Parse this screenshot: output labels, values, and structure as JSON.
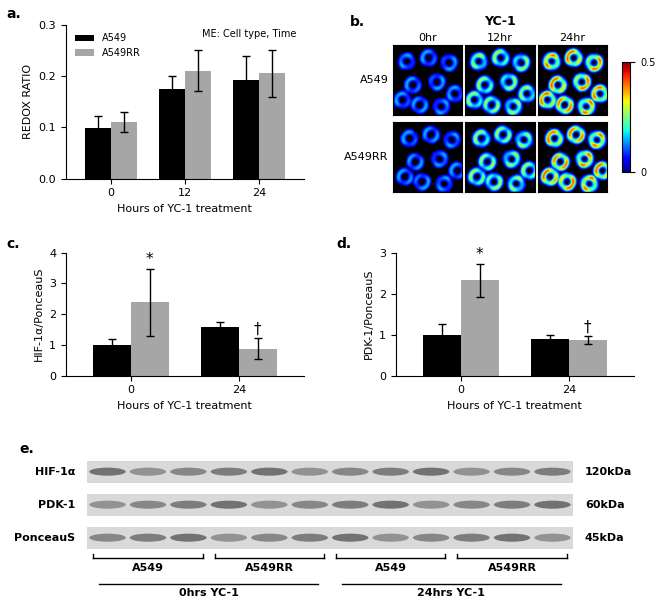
{
  "chart_data": [
    {
      "type": "bar",
      "panel": "a.",
      "x_label": "Hours of YC-1 treatment",
      "y_label": "REDOX RATIO",
      "annotation": "ME: Cell type, Time",
      "legend": "upper left",
      "categories": [
        "0",
        "12",
        "24"
      ],
      "series": [
        {
          "name": "A549",
          "color": "#000000",
          "values": [
            0.098,
            0.175,
            0.193
          ],
          "errors": [
            0.025,
            0.025,
            0.045
          ]
        },
        {
          "name": "A549RR",
          "color": "#a6a6a6",
          "values": [
            0.11,
            0.21,
            0.205
          ],
          "errors": [
            0.02,
            0.04,
            0.045
          ]
        }
      ],
      "ylim": [
        0.0,
        0.3
      ],
      "yticks": [
        0.0,
        0.1,
        0.2,
        0.3
      ]
    },
    {
      "type": "bar",
      "panel": "c.",
      "x_label": "Hours of YC-1 treatment",
      "y_label": "HIF-1α/PonceauS",
      "categories": [
        "0",
        "24"
      ],
      "series": [
        {
          "name": "A549",
          "color": "#000000",
          "values": [
            1.0,
            1.57
          ],
          "errors": [
            0.2,
            0.18
          ]
        },
        {
          "name": "A549RR",
          "color": "#a6a6a6",
          "values": [
            2.38,
            0.88
          ],
          "errors": [
            1.1,
            0.35
          ],
          "significance": [
            "*",
            "†"
          ]
        }
      ],
      "ylim": [
        0,
        4
      ],
      "yticks": [
        0,
        1,
        2,
        3,
        4
      ]
    },
    {
      "type": "bar",
      "panel": "d.",
      "x_label": "Hours of YC-1 treatment",
      "y_label": "PDK-1/PonceauS",
      "categories": [
        "0",
        "24"
      ],
      "series": [
        {
          "name": "A549",
          "color": "#000000",
          "values": [
            1.0,
            0.9
          ],
          "errors": [
            0.25,
            0.1
          ]
        },
        {
          "name": "A549RR",
          "color": "#a6a6a6",
          "values": [
            2.33,
            0.88
          ],
          "errors": [
            0.4,
            0.1
          ],
          "significance": [
            "*",
            "†"
          ]
        }
      ],
      "ylim": [
        0,
        3
      ],
      "yticks": [
        0,
        1,
        2,
        3
      ]
    }
  ],
  "images": {
    "panel": "b.",
    "title": "YC-1",
    "columns": [
      "0hr",
      "12hr",
      "24hr"
    ],
    "rows": [
      "A549",
      "A549RR"
    ],
    "colorbar": {
      "range": [
        0,
        0.5
      ],
      "ticks": [
        0,
        0.5
      ]
    }
  },
  "blot": {
    "panel": "e.",
    "rows": [
      {
        "label": "HIF-1α",
        "size": "120kDa"
      },
      {
        "label": "PDK-1",
        "size": "60kDa"
      },
      {
        "label": "PonceauS",
        "size": "45kDa"
      }
    ],
    "groups": [
      "A549",
      "A549RR",
      "A549",
      "A549RR"
    ],
    "times": [
      "0hrs YC-1",
      "24hrs YC-1"
    ]
  }
}
